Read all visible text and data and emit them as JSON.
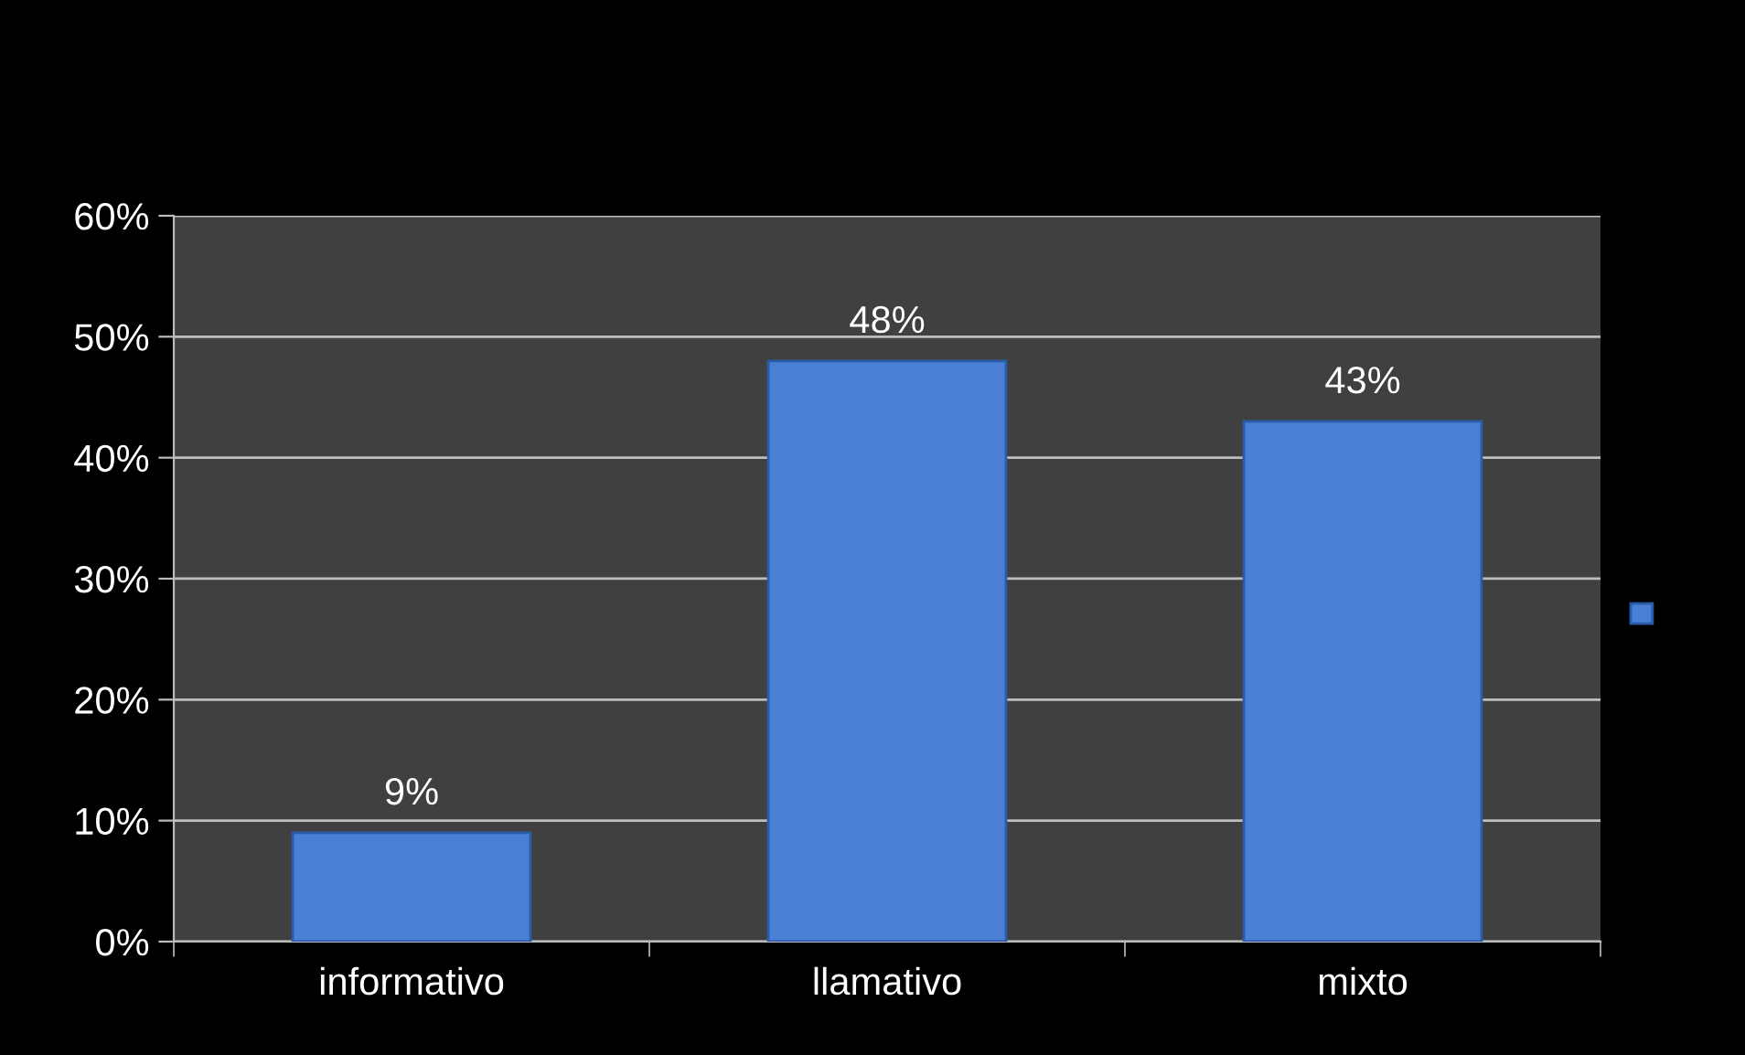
{
  "chart_data": {
    "type": "bar",
    "categories": [
      "informativo",
      "llamativo",
      "mixto"
    ],
    "values": [
      9,
      48,
      43
    ],
    "color": "#4a7fd6",
    "value_labels": [
      "9%",
      "48%",
      "43%"
    ],
    "ylim": [
      0,
      60
    ],
    "yticks": [
      {
        "value": 0,
        "label": "0%"
      },
      {
        "value": 10,
        "label": "10%"
      },
      {
        "value": 20,
        "label": "20%"
      },
      {
        "value": 30,
        "label": "30%"
      },
      {
        "value": 40,
        "label": "40%"
      },
      {
        "value": 50,
        "label": "50%"
      },
      {
        "value": 60,
        "label": "60%"
      }
    ],
    "grid": "y"
  }
}
